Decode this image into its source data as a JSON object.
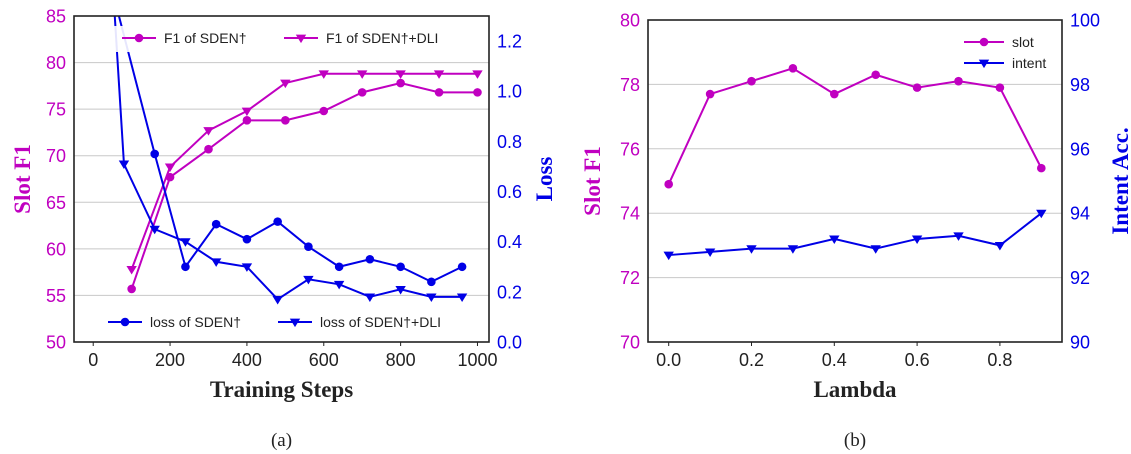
{
  "chart_data": [
    {
      "type": "line",
      "caption": "(a)",
      "xlabel": "Training Steps",
      "ylabel_left": "Slot F1",
      "ylabel_right": "Loss",
      "xlim": [
        -50,
        1030
      ],
      "ylim_left": [
        50,
        85
      ],
      "ylim_right": [
        0.0,
        1.3
      ],
      "xticks": [
        0,
        200,
        400,
        600,
        800,
        1000
      ],
      "xtick_labels": [
        "0",
        "200",
        "400",
        "600",
        "800",
        "1000"
      ],
      "yticks_left": [
        50,
        55,
        60,
        65,
        70,
        75,
        80,
        85
      ],
      "ytick_labels_left": [
        "50",
        "55",
        "60",
        "65",
        "70",
        "75",
        "80",
        "85"
      ],
      "yticks_right": [
        0.0,
        0.2,
        0.4,
        0.6,
        0.8,
        1.0,
        1.2
      ],
      "ytick_labels_right": [
        "0.0",
        "0.2",
        "0.4",
        "0.6",
        "0.8",
        "1.0",
        "1.2"
      ],
      "grid": "horizontal",
      "legend_top_position": "top",
      "legend_bottom_position": "bottom",
      "series": [
        {
          "name": "F1 of SDEN†",
          "axis": "left",
          "color": "#c000c0",
          "marker": "circle",
          "x": [
            100,
            200,
            300,
            400,
            500,
            600,
            700,
            800,
            900,
            1000
          ],
          "y": [
            55.7,
            67.7,
            70.7,
            73.8,
            73.8,
            74.8,
            76.8,
            77.8,
            76.8,
            76.8
          ]
        },
        {
          "name": "F1 of SDEN†+DLI",
          "axis": "left",
          "color": "#c000c0",
          "marker": "triangle-down",
          "x": [
            100,
            200,
            300,
            400,
            500,
            600,
            700,
            800,
            900,
            1000
          ],
          "y": [
            57.8,
            68.8,
            72.7,
            74.8,
            77.8,
            78.8,
            78.8,
            78.8,
            78.8,
            78.8
          ]
        },
        {
          "name": "loss of SDEN†",
          "axis": "right",
          "color": "#0000e6",
          "marker": "circle",
          "x": [
            50,
            160,
            240,
            320,
            400,
            480,
            560,
            640,
            720,
            800,
            880,
            960
          ],
          "y": [
            1.4,
            0.75,
            0.3,
            0.47,
            0.41,
            0.48,
            0.38,
            0.3,
            0.33,
            0.3,
            0.24,
            0.3
          ]
        },
        {
          "name": "loss of SDEN†+DLI",
          "axis": "right",
          "color": "#0000e6",
          "marker": "triangle-down",
          "x": [
            50,
            80,
            160,
            240,
            320,
            400,
            480,
            560,
            640,
            720,
            800,
            880,
            960
          ],
          "y": [
            1.45,
            0.71,
            0.45,
            0.4,
            0.32,
            0.3,
            0.17,
            0.25,
            0.23,
            0.18,
            0.21,
            0.18,
            0.18
          ]
        }
      ]
    },
    {
      "type": "line",
      "caption": "(b)",
      "xlabel": "Lambda",
      "ylabel_left": "Slot F1",
      "ylabel_right": "Intent Acc.",
      "xlim": [
        -0.05,
        0.95
      ],
      "ylim_left": [
        70,
        80
      ],
      "ylim_right": [
        90,
        100
      ],
      "xticks": [
        0.0,
        0.2,
        0.4,
        0.6,
        0.8
      ],
      "xtick_labels": [
        "0.0",
        "0.2",
        "0.4",
        "0.6",
        "0.8"
      ],
      "yticks_left": [
        70,
        72,
        74,
        76,
        78,
        80
      ],
      "ytick_labels_left": [
        "70",
        "72",
        "74",
        "76",
        "78",
        "80"
      ],
      "yticks_right": [
        90,
        92,
        94,
        96,
        98,
        100
      ],
      "ytick_labels_right": [
        "90",
        "92",
        "94",
        "96",
        "98",
        "100"
      ],
      "grid": "horizontal",
      "legend_position": "top-right",
      "series": [
        {
          "name": "slot",
          "axis": "left",
          "color": "#c000c0",
          "marker": "circle",
          "x": [
            0.0,
            0.1,
            0.2,
            0.3,
            0.4,
            0.5,
            0.6,
            0.7,
            0.8,
            0.9
          ],
          "y": [
            74.9,
            77.7,
            78.1,
            78.5,
            77.7,
            78.3,
            77.9,
            78.1,
            77.9,
            75.4
          ]
        },
        {
          "name": "intent",
          "axis": "right",
          "color": "#0000e6",
          "marker": "triangle-down",
          "x": [
            0.0,
            0.1,
            0.2,
            0.3,
            0.4,
            0.5,
            0.6,
            0.7,
            0.8,
            0.9
          ],
          "y": [
            92.7,
            92.8,
            92.9,
            92.9,
            93.2,
            92.9,
            93.2,
            93.3,
            93.0,
            94.0
          ]
        }
      ]
    }
  ]
}
